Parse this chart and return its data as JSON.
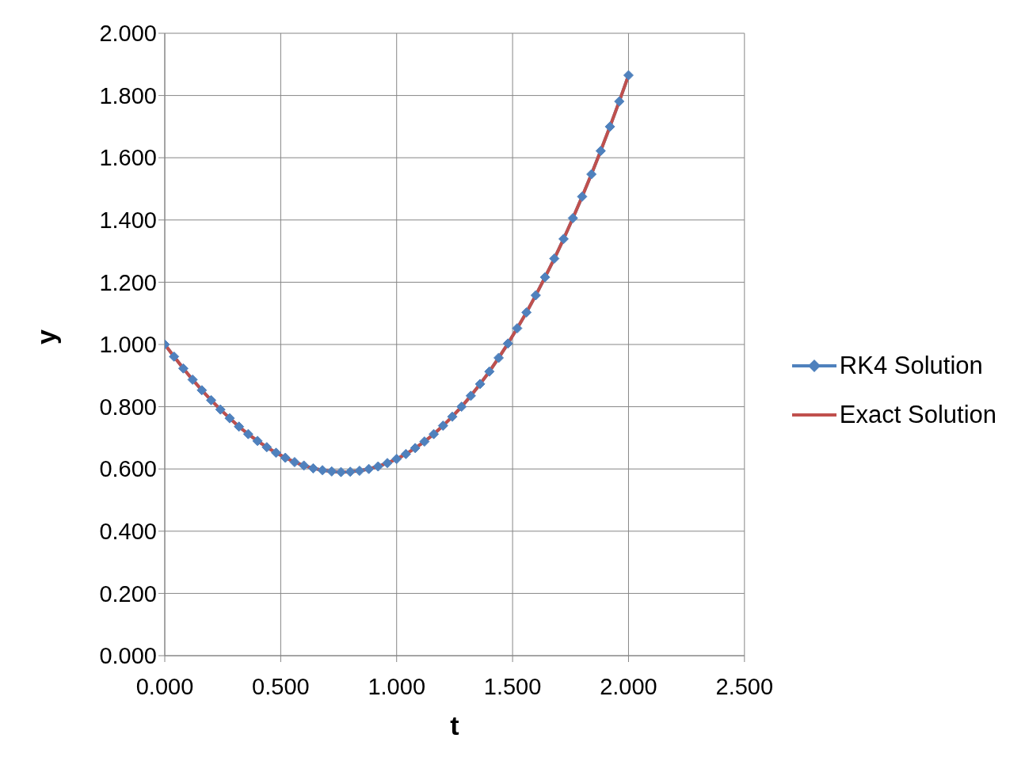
{
  "chart_data": {
    "type": "line",
    "xlabel": "t",
    "ylabel": "y",
    "x": [
      0,
      0.04,
      0.08,
      0.12,
      0.16,
      0.2,
      0.24,
      0.28,
      0.32,
      0.36,
      0.4,
      0.44,
      0.48,
      0.52,
      0.56,
      0.6,
      0.64,
      0.68,
      0.72,
      0.76,
      0.8,
      0.84,
      0.88,
      0.92,
      0.96,
      1,
      1.04,
      1.08,
      1.12,
      1.16,
      1.2,
      1.24,
      1.28,
      1.32,
      1.36,
      1.4,
      1.44,
      1.48,
      1.52,
      1.56,
      1.6,
      1.64,
      1.68,
      1.72,
      1.76,
      1.8,
      1.84,
      1.88,
      1.92,
      1.96,
      2
    ],
    "series": [
      {
        "name": "RK4 Solution",
        "color": "#4f81bd",
        "marker": "diamond",
        "values": [
          1,
          0.961,
          0.923,
          0.887,
          0.853,
          0.821,
          0.791,
          0.763,
          0.736,
          0.712,
          0.69,
          0.67,
          0.652,
          0.636,
          0.622,
          0.611,
          0.602,
          0.596,
          0.592,
          0.59,
          0.591,
          0.594,
          0.6,
          0.608,
          0.619,
          0.632,
          0.648,
          0.667,
          0.688,
          0.712,
          0.739,
          0.768,
          0.8,
          0.835,
          0.873,
          0.913,
          0.957,
          1.003,
          1.052,
          1.103,
          1.158,
          1.216,
          1.276,
          1.339,
          1.406,
          1.475,
          1.547,
          1.622,
          1.7,
          1.781,
          1.865
        ]
      },
      {
        "name": "Exact Solution",
        "color": "#c0504d",
        "marker": "none",
        "values": [
          1,
          0.961,
          0.923,
          0.887,
          0.853,
          0.821,
          0.791,
          0.763,
          0.736,
          0.712,
          0.69,
          0.67,
          0.652,
          0.636,
          0.622,
          0.611,
          0.602,
          0.596,
          0.592,
          0.59,
          0.591,
          0.594,
          0.6,
          0.608,
          0.619,
          0.632,
          0.648,
          0.667,
          0.688,
          0.712,
          0.739,
          0.768,
          0.8,
          0.835,
          0.873,
          0.913,
          0.957,
          1.003,
          1.052,
          1.103,
          1.158,
          1.216,
          1.276,
          1.339,
          1.406,
          1.475,
          1.547,
          1.622,
          1.7,
          1.781,
          1.865
        ]
      }
    ],
    "xlim": [
      0,
      2.5
    ],
    "xticks": [
      {
        "value": 0,
        "label": "0.000"
      },
      {
        "value": 0.5,
        "label": "0.500"
      },
      {
        "value": 1,
        "label": "1.000"
      },
      {
        "value": 1.5,
        "label": "1.500"
      },
      {
        "value": 2,
        "label": "2.000"
      },
      {
        "value": 2.5,
        "label": "2.500"
      }
    ],
    "ylim": [
      0,
      2
    ],
    "yticks": [
      {
        "value": 0,
        "label": "0.000"
      },
      {
        "value": 0.2,
        "label": "0.200"
      },
      {
        "value": 0.4,
        "label": "0.400"
      },
      {
        "value": 0.6,
        "label": "0.600"
      },
      {
        "value": 0.8,
        "label": "0.800"
      },
      {
        "value": 1,
        "label": "1.000"
      },
      {
        "value": 1.2,
        "label": "1.200"
      },
      {
        "value": 1.4,
        "label": "1.400"
      },
      {
        "value": 1.6,
        "label": "1.600"
      },
      {
        "value": 1.8,
        "label": "1.800"
      },
      {
        "value": 2,
        "label": "2.000"
      }
    ],
    "grid": true,
    "legend": "right"
  }
}
